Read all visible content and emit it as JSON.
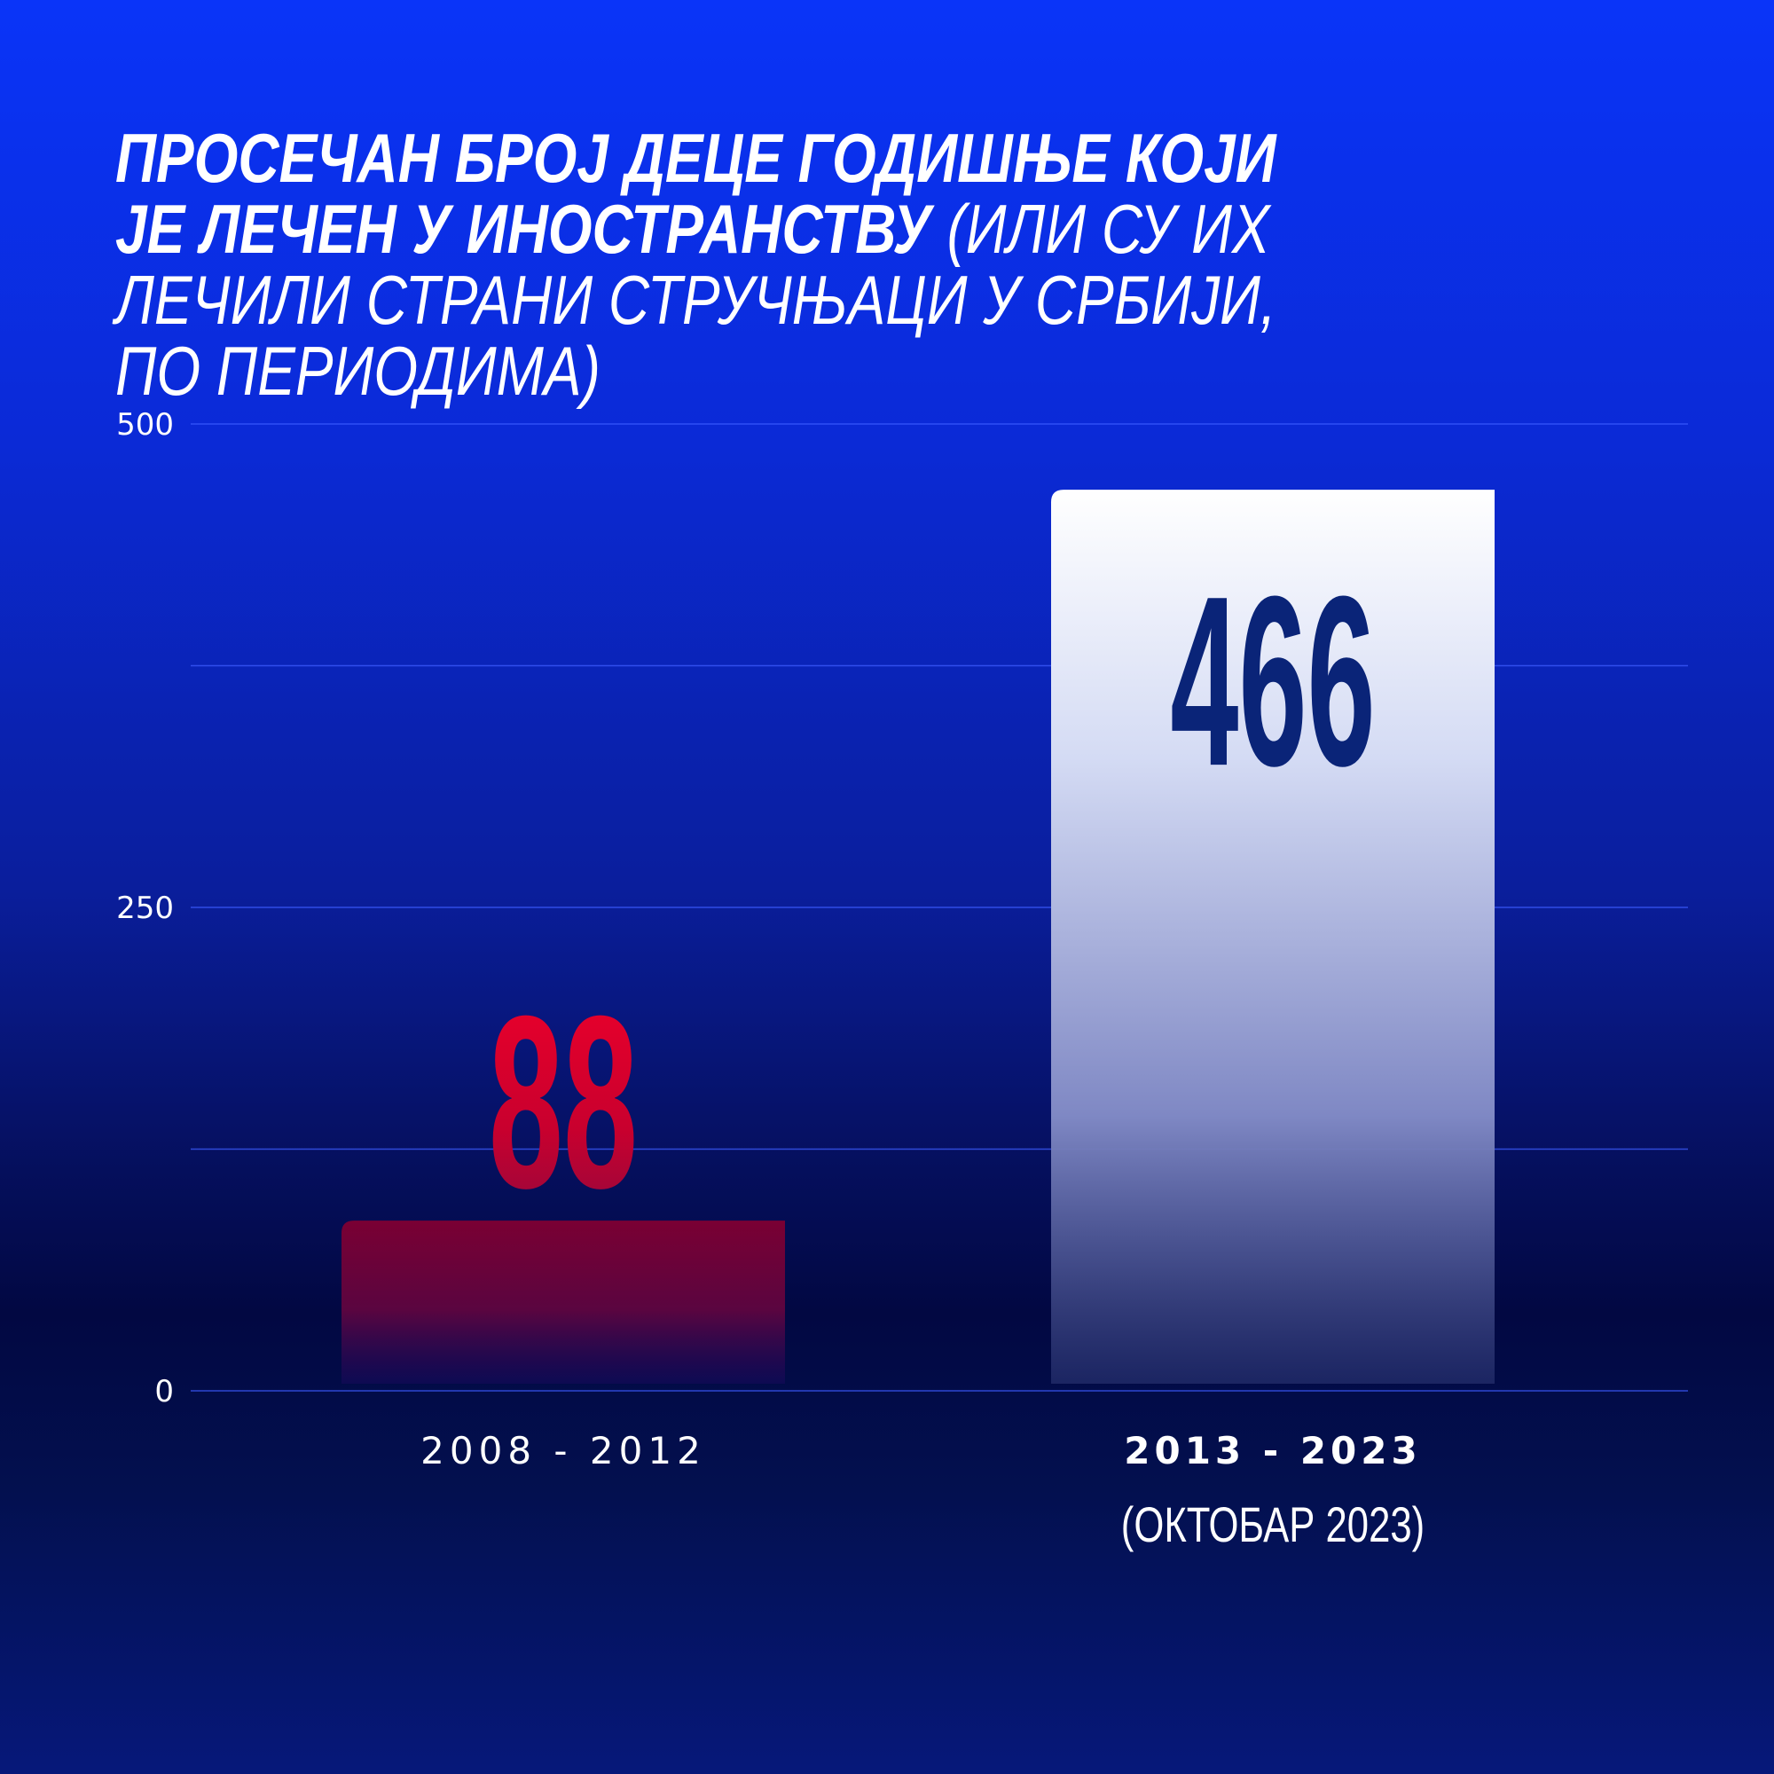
{
  "title": {
    "bold": "ПРОСЕЧАН БРОЈ ДЕЦЕ ГОДИШЊЕ КОЈИ ЈЕ ЛЕЧЕН У ИНОСТРАНСТВУ",
    "light": " (ИЛИ СУ ИХ ЛЕЧИЛИ СТРАНИ СТРУЧЊАЦИ У СРБИЈИ, ПО ПЕРИОДИМА)"
  },
  "colors": {
    "bar_old": "#7a0033",
    "label_old": "#e8002a",
    "bar_new": "#ffffff",
    "label_new": "#0a2478",
    "gridline": "#3d5cff"
  },
  "chart_data": {
    "type": "bar",
    "categories": [
      "2008 - 2012",
      "2013 - 2023"
    ],
    "category_notes": [
      "",
      "(ОКТОБАР 2023)"
    ],
    "values": [
      88,
      466
    ],
    "value_labels": [
      "88",
      "466"
    ],
    "yticks": [
      0,
      250,
      500
    ],
    "ytick_labels": [
      "0",
      "250",
      "500"
    ],
    "ylim": [
      0,
      500
    ],
    "grid": true,
    "gridline_values": [
      0,
      125,
      250,
      375,
      500
    ],
    "xlabel": "",
    "ylabel": ""
  }
}
